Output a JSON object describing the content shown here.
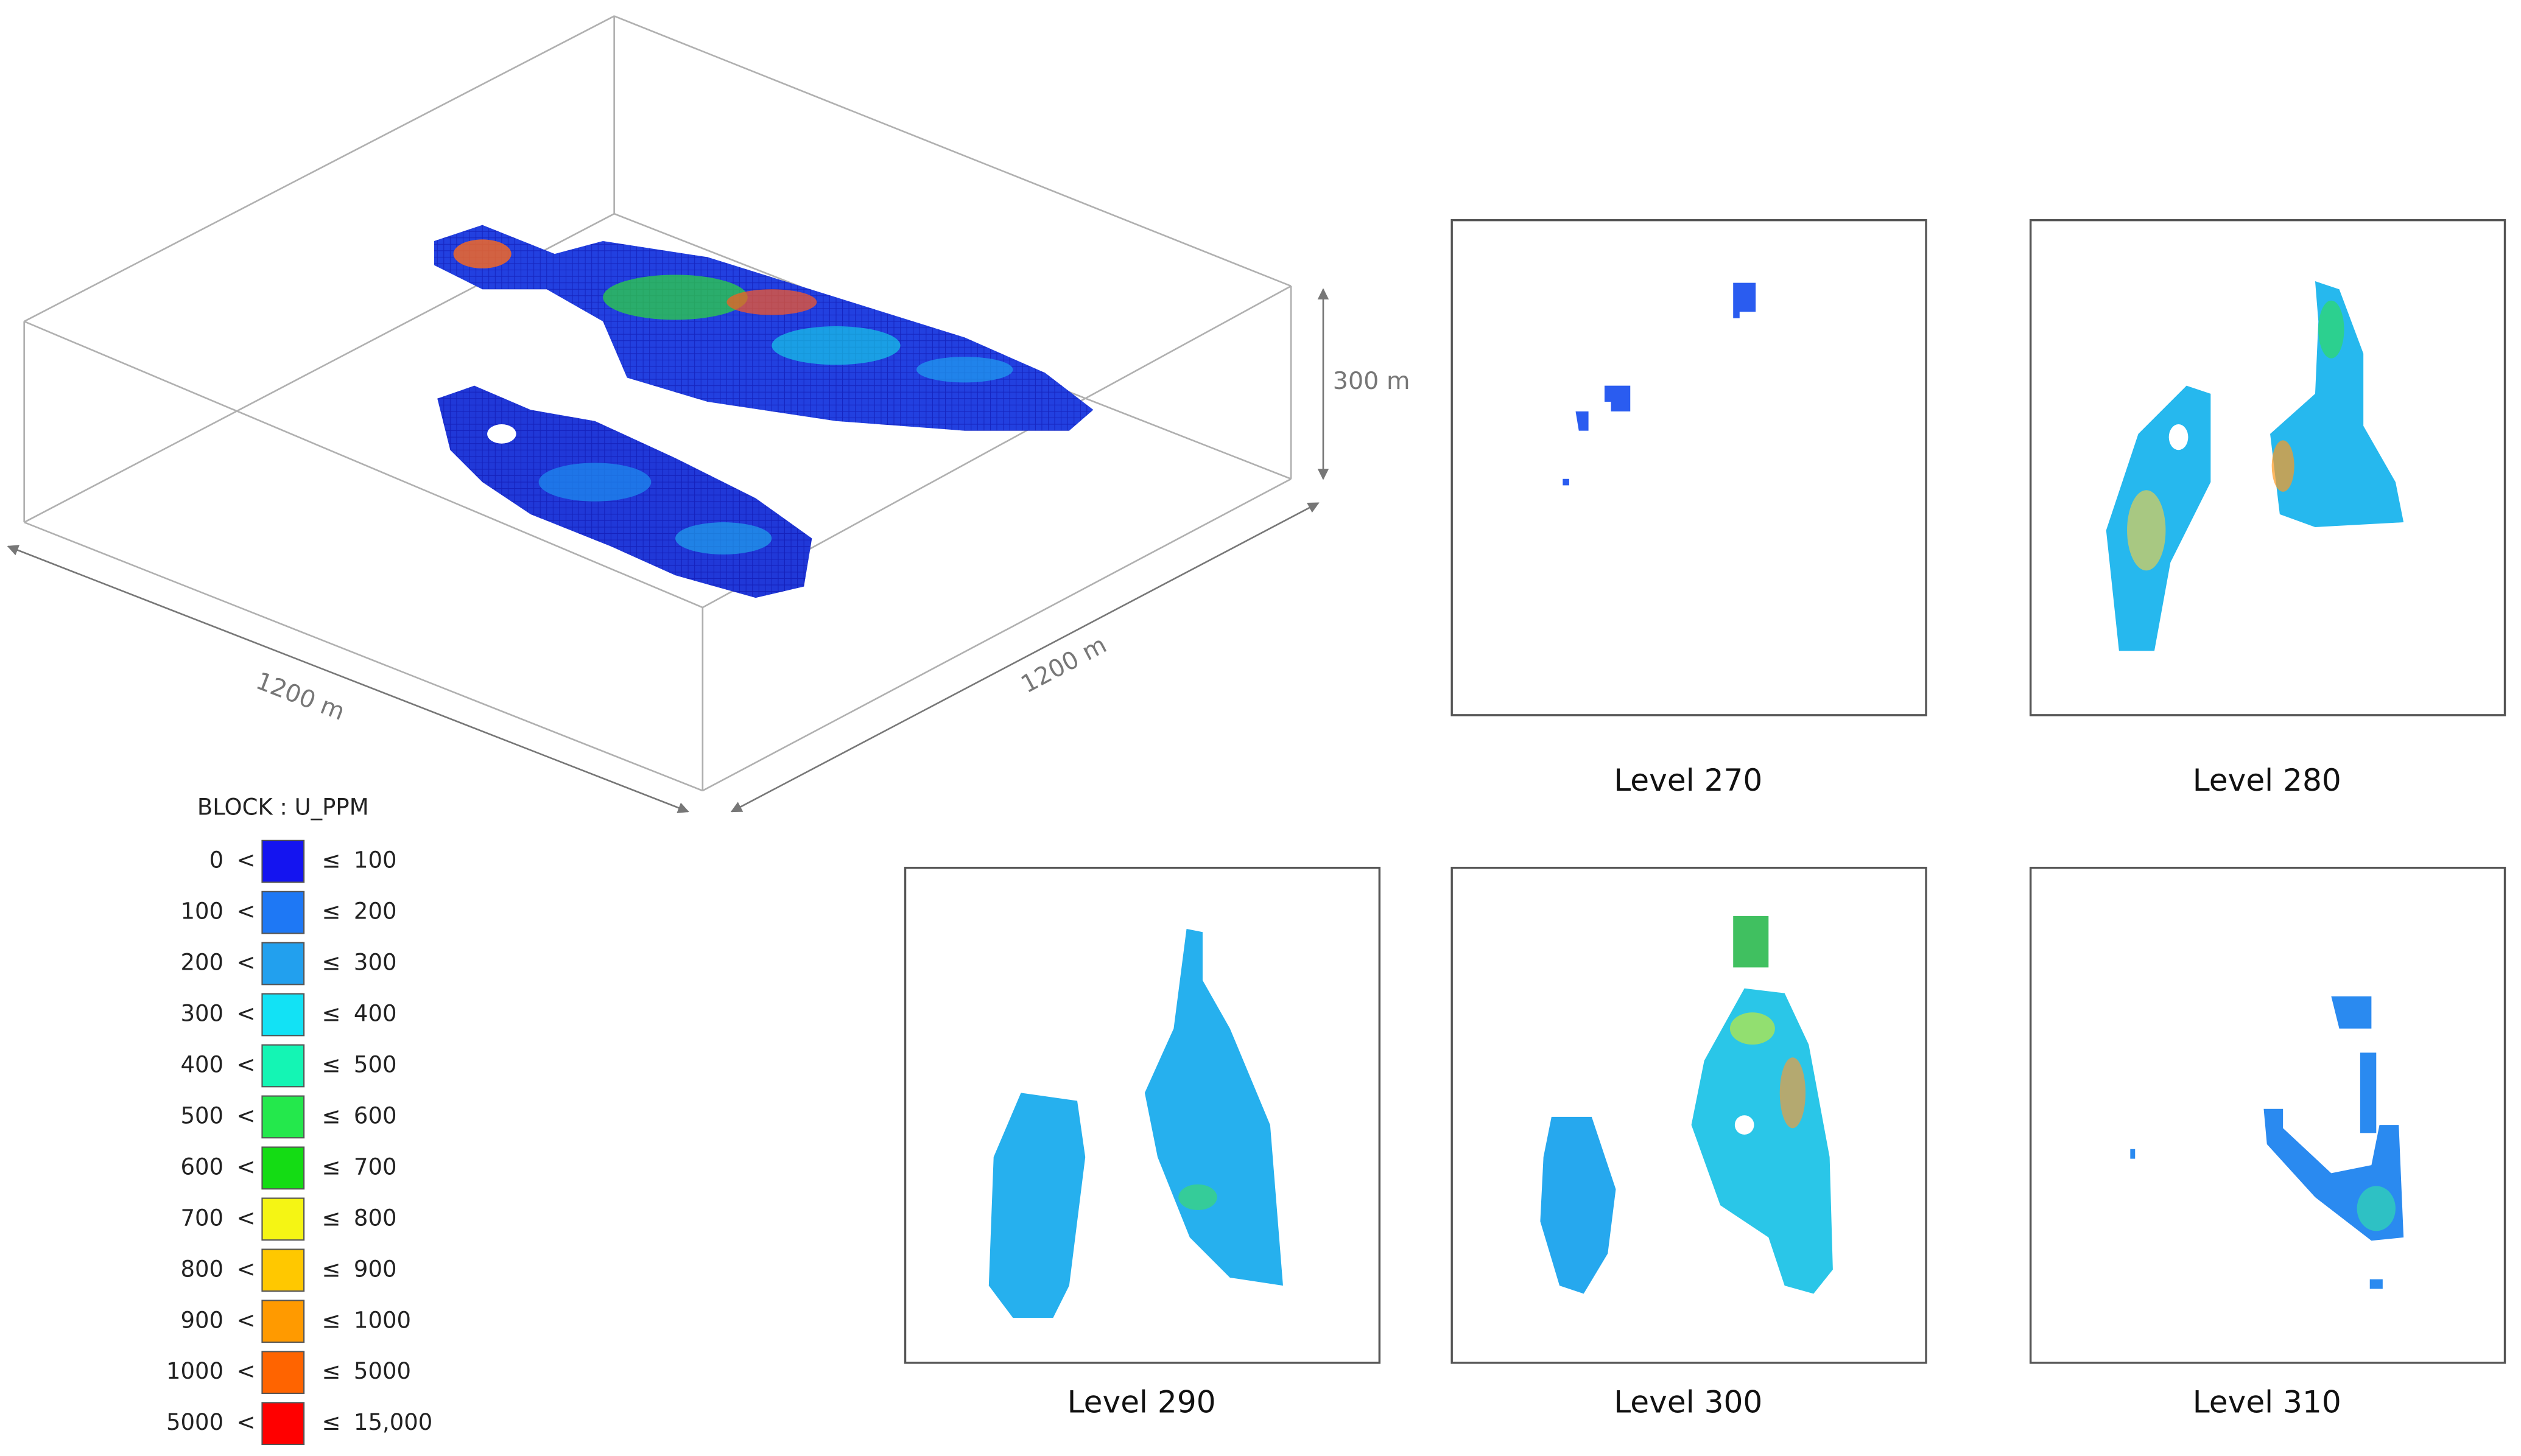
{
  "block_model": {
    "dimension_labels": {
      "length": "1200 m",
      "width": "1200 m",
      "height": "300 m"
    }
  },
  "legend": {
    "title": "BLOCK : U_PPM",
    "lower_symbol": "<",
    "upper_symbol": "≤",
    "bins": [
      {
        "lower": "0",
        "upper": "100",
        "color": "#1414f0"
      },
      {
        "lower": "100",
        "upper": "200",
        "color": "#1e78f5"
      },
      {
        "lower": "200",
        "upper": "300",
        "color": "#22a0ee"
      },
      {
        "lower": "300",
        "upper": "400",
        "color": "#12e2f5"
      },
      {
        "lower": "400",
        "upper": "500",
        "color": "#14f5b4"
      },
      {
        "lower": "500",
        "upper": "600",
        "color": "#24e84c"
      },
      {
        "lower": "600",
        "upper": "700",
        "color": "#14dc14"
      },
      {
        "lower": "700",
        "upper": "800",
        "color": "#f5f514"
      },
      {
        "lower": "800",
        "upper": "900",
        "color": "#ffc800"
      },
      {
        "lower": "900",
        "upper": "1000",
        "color": "#ff9a00"
      },
      {
        "lower": "1000",
        "upper": "5000",
        "color": "#ff6400"
      },
      {
        "lower": "5000",
        "upper": "15,000",
        "color": "#ff0000"
      }
    ]
  },
  "levels": [
    {
      "label": "Level 270"
    },
    {
      "label": "Level 280"
    },
    {
      "label": "Level 290"
    },
    {
      "label": "Level 300"
    },
    {
      "label": "Level 310"
    }
  ]
}
